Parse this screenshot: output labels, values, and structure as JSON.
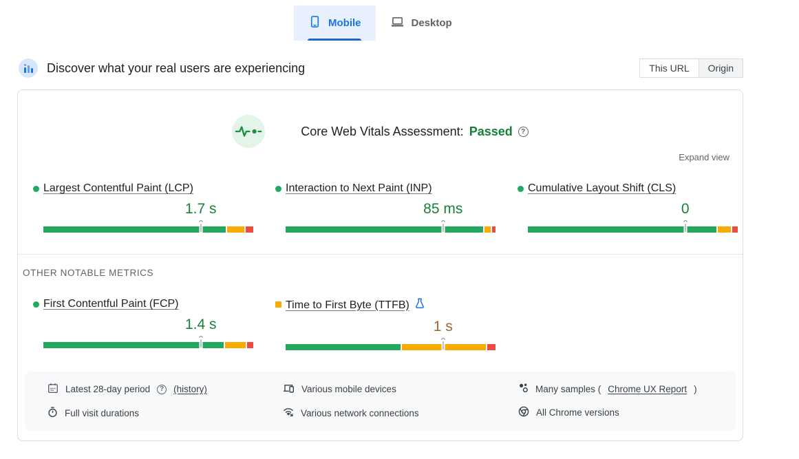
{
  "device_tabs": [
    {
      "label": "Mobile",
      "selected": true
    },
    {
      "label": "Desktop",
      "selected": false
    }
  ],
  "field_header": {
    "title": "Discover what your real users are experiencing",
    "scope_toggle": [
      {
        "label": "This URL",
        "selected": true
      },
      {
        "label": "Origin",
        "selected": false
      }
    ]
  },
  "assessment": {
    "label": "Core Web Vitals Assessment:",
    "status": "Passed",
    "status_color": "#188038",
    "expand_label": "Expand view"
  },
  "colors": {
    "good": "#23a95f",
    "needs_improvement": "#f9ab00",
    "poor": "#ee4b40",
    "good_text": "#188038",
    "average_text": "#a1642c"
  },
  "core_metrics": [
    {
      "label": "Largest Contentful Paint (LCP)",
      "bullet": "circle",
      "bullet_color": "#23a95f",
      "value": "1.7 s",
      "value_color": "#188038",
      "experimental": false,
      "marker_pct": 75,
      "distribution": {
        "good": 88,
        "needs_improvement": 8.5,
        "poor": 3.5
      }
    },
    {
      "label": "Interaction to Next Paint (INP)",
      "bullet": "circle",
      "bullet_color": "#23a95f",
      "value": "85 ms",
      "value_color": "#188038",
      "experimental": false,
      "marker_pct": 75,
      "distribution": {
        "good": 95.5,
        "needs_improvement": 3,
        "poor": 1.5
      }
    },
    {
      "label": "Cumulative Layout Shift (CLS)",
      "bullet": "circle",
      "bullet_color": "#23a95f",
      "value": "0",
      "value_color": "#188038",
      "experimental": false,
      "marker_pct": 75,
      "distribution": {
        "good": 91,
        "needs_improvement": 6.5,
        "poor": 2.5
      }
    }
  ],
  "other_metrics_label": "OTHER NOTABLE METRICS",
  "other_metrics": [
    {
      "label": "First Contentful Paint (FCP)",
      "bullet": "circle",
      "bullet_color": "#23a95f",
      "value": "1.4 s",
      "value_color": "#188038",
      "experimental": false,
      "marker_pct": 75,
      "distribution": {
        "good": 87,
        "needs_improvement": 10,
        "poor": 3
      }
    },
    {
      "label": "Time to First Byte (TTFB)",
      "bullet": "square",
      "bullet_color": "#f9ab00",
      "value": "1 s",
      "value_color": "#a1642c",
      "experimental": true,
      "marker_pct": 75,
      "distribution": {
        "good": 55.5,
        "needs_improvement": 40.5,
        "poor": 4
      }
    }
  ],
  "footer": {
    "period_text": "Latest 28-day period",
    "history_link": "(history)",
    "durations_text": "Full visit durations",
    "devices_text": "Various mobile devices",
    "network_text": "Various network connections",
    "samples_prefix": "Many samples (",
    "samples_link": "Chrome UX Report",
    "samples_suffix": ")",
    "chrome_text": "All Chrome versions"
  }
}
